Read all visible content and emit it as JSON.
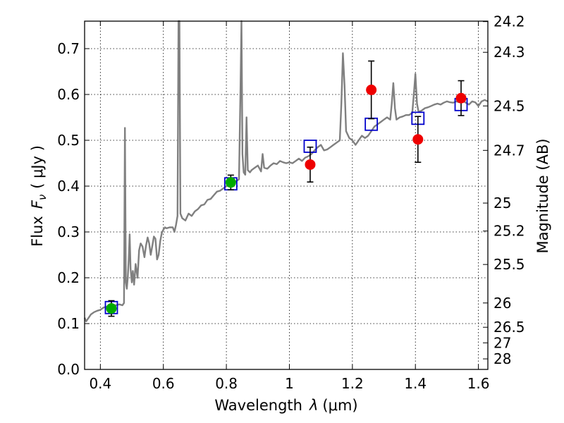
{
  "chart_data": {
    "type": "line+scatter",
    "xlabel_prefix": "Wavelength",
    "xlabel_symbol": "λ",
    "xlabel_unit": "(μm)",
    "ylabel_prefix": "Flux",
    "ylabel_symbol": "F",
    "ylabel_subscript": "ν",
    "ylabel_unit": "( μJy )",
    "y2label": "Magnitude (AB)",
    "xlim": [
      0.35,
      1.63
    ],
    "ylim": [
      0.0,
      0.76
    ],
    "grid": true,
    "x_ticks": [
      {
        "value": 0.4,
        "label": "0.4"
      },
      {
        "value": 0.6,
        "label": "0.6"
      },
      {
        "value": 0.8,
        "label": "0.8"
      },
      {
        "value": 1.0,
        "label": "1"
      },
      {
        "value": 1.2,
        "label": "1.2"
      },
      {
        "value": 1.4,
        "label": "1.4"
      },
      {
        "value": 1.6,
        "label": "1.6"
      }
    ],
    "y_ticks": [
      {
        "value": 0.0,
        "label": "0.0"
      },
      {
        "value": 0.1,
        "label": "0.1"
      },
      {
        "value": 0.2,
        "label": "0.2"
      },
      {
        "value": 0.3,
        "label": "0.3"
      },
      {
        "value": 0.4,
        "label": "0.4"
      },
      {
        "value": 0.5,
        "label": "0.5"
      },
      {
        "value": 0.6,
        "label": "0.6"
      },
      {
        "value": 0.7,
        "label": "0.7"
      }
    ],
    "mag_ticks": [
      {
        "flux": 0.759,
        "label": "24.2"
      },
      {
        "flux": 0.692,
        "label": "24.3"
      },
      {
        "flux": 0.575,
        "label": "24.5"
      },
      {
        "flux": 0.478,
        "label": "24.7"
      },
      {
        "flux": 0.363,
        "label": "25"
      },
      {
        "flux": 0.302,
        "label": "25.2"
      },
      {
        "flux": 0.229,
        "label": "25.5"
      },
      {
        "flux": 0.145,
        "label": "26"
      },
      {
        "flux": 0.092,
        "label": "26.5"
      },
      {
        "flux": 0.058,
        "label": "27"
      },
      {
        "flux": 0.023,
        "label": "28"
      }
    ],
    "model_spectrum": {
      "color": "#808080",
      "points": [
        [
          0.35,
          0.113
        ],
        [
          0.355,
          0.105
        ],
        [
          0.36,
          0.11
        ],
        [
          0.37,
          0.12
        ],
        [
          0.38,
          0.125
        ],
        [
          0.39,
          0.128
        ],
        [
          0.4,
          0.13
        ],
        [
          0.41,
          0.135
        ],
        [
          0.42,
          0.137
        ],
        [
          0.43,
          0.138
        ],
        [
          0.44,
          0.14
        ],
        [
          0.45,
          0.14
        ],
        [
          0.46,
          0.142
        ],
        [
          0.47,
          0.14
        ],
        [
          0.475,
          0.145
        ],
        [
          0.478,
          0.527
        ],
        [
          0.481,
          0.19
        ],
        [
          0.484,
          0.176
        ],
        [
          0.487,
          0.2
        ],
        [
          0.49,
          0.24
        ],
        [
          0.493,
          0.295
        ],
        [
          0.496,
          0.22
        ],
        [
          0.5,
          0.19
        ],
        [
          0.503,
          0.215
        ],
        [
          0.507,
          0.185
        ],
        [
          0.512,
          0.23
        ],
        [
          0.518,
          0.2
        ],
        [
          0.523,
          0.26
        ],
        [
          0.528,
          0.275
        ],
        [
          0.534,
          0.268
        ],
        [
          0.54,
          0.245
        ],
        [
          0.545,
          0.27
        ],
        [
          0.55,
          0.288
        ],
        [
          0.555,
          0.275
        ],
        [
          0.56,
          0.25
        ],
        [
          0.565,
          0.27
        ],
        [
          0.57,
          0.29
        ],
        [
          0.575,
          0.285
        ],
        [
          0.58,
          0.24
        ],
        [
          0.585,
          0.25
        ],
        [
          0.59,
          0.28
        ],
        [
          0.595,
          0.298
        ],
        [
          0.6,
          0.305
        ],
        [
          0.605,
          0.31
        ],
        [
          0.61,
          0.308
        ],
        [
          0.62,
          0.31
        ],
        [
          0.63,
          0.31
        ],
        [
          0.635,
          0.3
        ],
        [
          0.64,
          0.315
        ],
        [
          0.645,
          0.335
        ],
        [
          0.648,
          0.76
        ],
        [
          0.651,
          0.76
        ],
        [
          0.654,
          0.34
        ],
        [
          0.66,
          0.33
        ],
        [
          0.67,
          0.325
        ],
        [
          0.68,
          0.34
        ],
        [
          0.69,
          0.335
        ],
        [
          0.7,
          0.345
        ],
        [
          0.71,
          0.35
        ],
        [
          0.72,
          0.358
        ],
        [
          0.73,
          0.36
        ],
        [
          0.74,
          0.37
        ],
        [
          0.75,
          0.372
        ],
        [
          0.76,
          0.38
        ],
        [
          0.77,
          0.388
        ],
        [
          0.78,
          0.39
        ],
        [
          0.79,
          0.395
        ],
        [
          0.8,
          0.4
        ],
        [
          0.81,
          0.402
        ],
        [
          0.82,
          0.405
        ],
        [
          0.83,
          0.41
        ],
        [
          0.84,
          0.415
        ],
        [
          0.845,
          0.62
        ],
        [
          0.848,
          0.76
        ],
        [
          0.851,
          0.47
        ],
        [
          0.855,
          0.43
        ],
        [
          0.86,
          0.425
        ],
        [
          0.864,
          0.55
        ],
        [
          0.868,
          0.435
        ],
        [
          0.875,
          0.43
        ],
        [
          0.88,
          0.435
        ],
        [
          0.89,
          0.44
        ],
        [
          0.9,
          0.445
        ],
        [
          0.91,
          0.432
        ],
        [
          0.915,
          0.47
        ],
        [
          0.92,
          0.44
        ],
        [
          0.93,
          0.438
        ],
        [
          0.94,
          0.445
        ],
        [
          0.95,
          0.45
        ],
        [
          0.96,
          0.448
        ],
        [
          0.97,
          0.455
        ],
        [
          0.98,
          0.452
        ],
        [
          0.99,
          0.45
        ],
        [
          1.0,
          0.452
        ],
        [
          1.01,
          0.45
        ],
        [
          1.02,
          0.455
        ],
        [
          1.03,
          0.46
        ],
        [
          1.04,
          0.455
        ],
        [
          1.05,
          0.462
        ],
        [
          1.06,
          0.465
        ],
        [
          1.07,
          0.47
        ],
        [
          1.08,
          0.478
        ],
        [
          1.09,
          0.485
        ],
        [
          1.1,
          0.49
        ],
        [
          1.11,
          0.478
        ],
        [
          1.12,
          0.48
        ],
        [
          1.13,
          0.485
        ],
        [
          1.14,
          0.49
        ],
        [
          1.15,
          0.495
        ],
        [
          1.16,
          0.5
        ],
        [
          1.165,
          0.58
        ],
        [
          1.17,
          0.69
        ],
        [
          1.175,
          0.62
        ],
        [
          1.18,
          0.52
        ],
        [
          1.19,
          0.505
        ],
        [
          1.2,
          0.5
        ],
        [
          1.21,
          0.49
        ],
        [
          1.22,
          0.5
        ],
        [
          1.23,
          0.51
        ],
        [
          1.24,
          0.505
        ],
        [
          1.25,
          0.51
        ],
        [
          1.26,
          0.52
        ],
        [
          1.27,
          0.53
        ],
        [
          1.28,
          0.535
        ],
        [
          1.29,
          0.54
        ],
        [
          1.3,
          0.545
        ],
        [
          1.31,
          0.55
        ],
        [
          1.32,
          0.545
        ],
        [
          1.325,
          0.58
        ],
        [
          1.33,
          0.625
        ],
        [
          1.335,
          0.57
        ],
        [
          1.34,
          0.545
        ],
        [
          1.35,
          0.55
        ],
        [
          1.36,
          0.552
        ],
        [
          1.37,
          0.555
        ],
        [
          1.38,
          0.555
        ],
        [
          1.39,
          0.56
        ],
        [
          1.395,
          0.6
        ],
        [
          1.4,
          0.645
        ],
        [
          1.405,
          0.58
        ],
        [
          1.41,
          0.562
        ],
        [
          1.42,
          0.565
        ],
        [
          1.43,
          0.57
        ],
        [
          1.44,
          0.572
        ],
        [
          1.45,
          0.575
        ],
        [
          1.46,
          0.578
        ],
        [
          1.47,
          0.58
        ],
        [
          1.48,
          0.578
        ],
        [
          1.49,
          0.582
        ],
        [
          1.5,
          0.585
        ],
        [
          1.51,
          0.583
        ],
        [
          1.52,
          0.582
        ],
        [
          1.53,
          0.585
        ],
        [
          1.54,
          0.583
        ],
        [
          1.55,
          0.587
        ],
        [
          1.56,
          0.582
        ],
        [
          1.57,
          0.578
        ],
        [
          1.58,
          0.585
        ],
        [
          1.59,
          0.583
        ],
        [
          1.6,
          0.575
        ],
        [
          1.61,
          0.585
        ],
        [
          1.62,
          0.588
        ],
        [
          1.63,
          0.585
        ]
      ]
    },
    "model_photometry": {
      "marker": "open-square",
      "color": "#0000cc",
      "points": [
        {
          "x": 0.435,
          "y": 0.135
        },
        {
          "x": 0.814,
          "y": 0.405
        },
        {
          "x": 1.066,
          "y": 0.487
        },
        {
          "x": 1.26,
          "y": 0.535
        },
        {
          "x": 1.408,
          "y": 0.548
        },
        {
          "x": 1.545,
          "y": 0.578
        }
      ]
    },
    "detections": {
      "marker": "filled-circle",
      "color": "#00aa00",
      "points": [
        {
          "x": 0.435,
          "y": 0.133,
          "err": 0.017
        },
        {
          "x": 0.814,
          "y": 0.408,
          "err": 0.016
        }
      ]
    },
    "measurements": {
      "marker": "filled-circle",
      "color": "#ee0000",
      "points": [
        {
          "x": 1.066,
          "y": 0.447,
          "err": 0.038
        },
        {
          "x": 1.26,
          "y": 0.61,
          "err": 0.063
        },
        {
          "x": 1.408,
          "y": 0.502,
          "err": 0.05
        },
        {
          "x": 1.545,
          "y": 0.592,
          "err": 0.038
        }
      ]
    }
  }
}
